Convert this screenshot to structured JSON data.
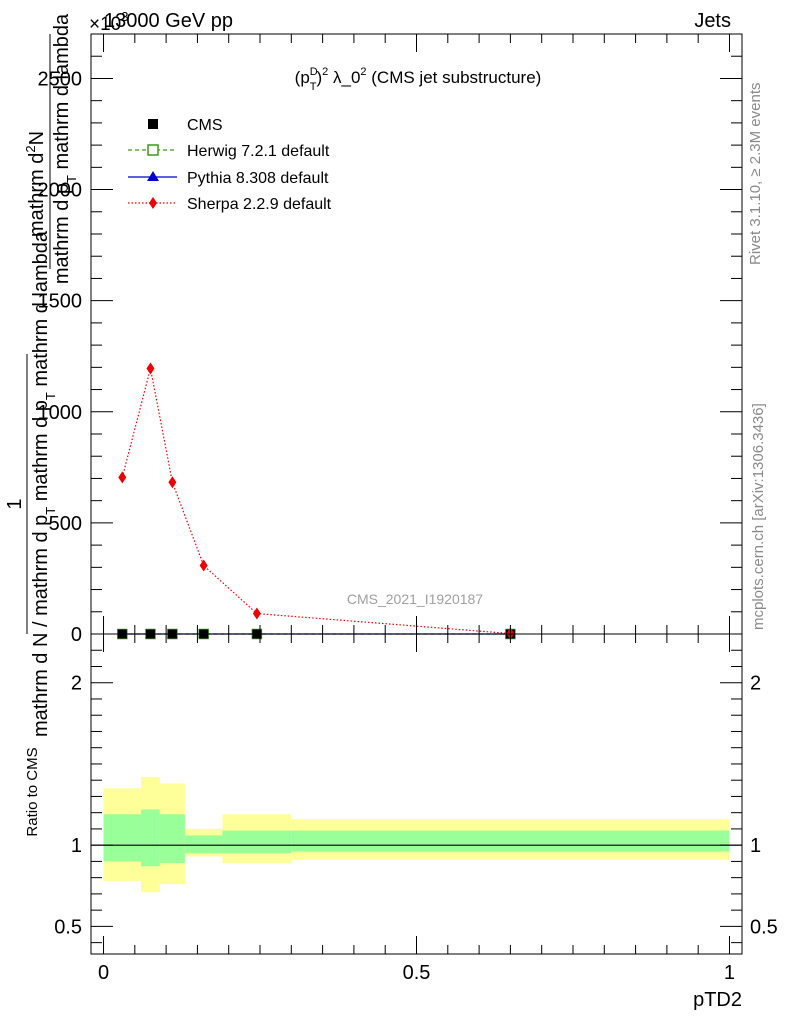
{
  "header": {
    "process": "13000 GeV pp",
    "category": "Jets",
    "multiplier": "×10",
    "multiplier_exp": "3"
  },
  "side_labels": {
    "rivet": "Rivet 3.1.10, ≥ 2.3M events",
    "mcplots": "mcplots.cern.ch [arXiv:1306.3436]"
  },
  "colors": {
    "cms": "#000000",
    "herwig": "#3a9a1a",
    "pythia": "#0000cc",
    "sherpa": "#ee0000",
    "band_inner": "#99ff99",
    "band_outer": "#ffff99"
  },
  "chart_data": [
    {
      "type": "line",
      "panel": "main",
      "title_parts": {
        "open": "(p",
        "sup": "D",
        "sub": "T",
        "close": ")",
        "exp": "2",
        "lambda": " λ_0",
        "lambda_exp": "2",
        "rest": " (CMS jet substructure)"
      },
      "ylabel_parts": {
        "num_line1": "mathrm d",
        "num_exp": "2",
        "num_n": "N",
        "den_line1": "mathrm d p",
        "den_sub": "T",
        "den_rest": " mathrm d lambda",
        "one": "1",
        "frac_den_a": "mathrm d N / mathrm d p",
        "frac_den_sub": "T",
        "frac_den_b": " mathrm d p",
        "frac_den_sub2": "T",
        "frac_den_c": " mathrm d lambda"
      },
      "ylim": [
        0,
        2700
      ],
      "xlim": [
        -0.02,
        1.02
      ],
      "y_ticks": [
        0,
        500,
        1000,
        1500,
        2000,
        2500
      ],
      "y_tick_labels": [
        "0",
        "500",
        "1000",
        "1500",
        "2000",
        "2500"
      ],
      "watermark": "CMS_2021_I1920187",
      "legend_position": "top-left",
      "series": [
        {
          "name": "CMS",
          "marker": "square",
          "x": [
            0.03,
            0.075,
            0.11,
            0.16,
            0.245,
            0.65
          ],
          "y": [
            0,
            0,
            0,
            0,
            0,
            0
          ]
        },
        {
          "name": "Herwig 7.2.1 default",
          "marker": "open-square",
          "line": "dashed",
          "x": [
            0.03,
            0.075,
            0.11,
            0.16,
            0.245,
            0.65
          ],
          "y": [
            0,
            0,
            0,
            0,
            0,
            0
          ]
        },
        {
          "name": "Pythia 8.308 default",
          "marker": "triangle",
          "line": "solid",
          "x": [
            0.03,
            0.075,
            0.11,
            0.16,
            0.245,
            0.65
          ],
          "y": [
            0,
            0,
            0,
            0,
            0,
            0
          ]
        },
        {
          "name": "Sherpa 2.2.9 default",
          "marker": "diamond",
          "line": "dotted",
          "x": [
            0.03,
            0.075,
            0.11,
            0.16,
            0.245,
            0.65
          ],
          "y": [
            705,
            1195,
            683,
            308,
            92,
            2
          ]
        }
      ]
    },
    {
      "type": "area",
      "panel": "ratio",
      "ylabel": "Ratio to CMS",
      "xlabel": "pTD2",
      "ylim": [
        0.33,
        2.3
      ],
      "xlim": [
        -0.02,
        1.02
      ],
      "y_ticks": [
        0.5,
        1,
        2
      ],
      "y_tick_labels": [
        "0.5",
        "1",
        "2"
      ],
      "x_ticks": [
        0,
        0.5,
        1
      ],
      "x_tick_labels": [
        "0",
        "0.5",
        "1"
      ],
      "bands": [
        {
          "x0": 0.0,
          "x1": 0.06,
          "inner": [
            0.9,
            1.19
          ],
          "outer": [
            0.78,
            1.35
          ]
        },
        {
          "x0": 0.06,
          "x1": 0.09,
          "inner": [
            0.87,
            1.22
          ],
          "outer": [
            0.71,
            1.42
          ]
        },
        {
          "x0": 0.09,
          "x1": 0.13,
          "inner": [
            0.89,
            1.19
          ],
          "outer": [
            0.76,
            1.38
          ]
        },
        {
          "x0": 0.13,
          "x1": 0.19,
          "inner": [
            0.95,
            1.06
          ],
          "outer": [
            0.93,
            1.1
          ]
        },
        {
          "x0": 0.19,
          "x1": 0.3,
          "inner": [
            0.95,
            1.09
          ],
          "outer": [
            0.89,
            1.19
          ]
        },
        {
          "x0": 0.3,
          "x1": 1.0,
          "inner": [
            0.96,
            1.09
          ],
          "outer": [
            0.91,
            1.16
          ]
        }
      ],
      "reference": 1
    }
  ]
}
